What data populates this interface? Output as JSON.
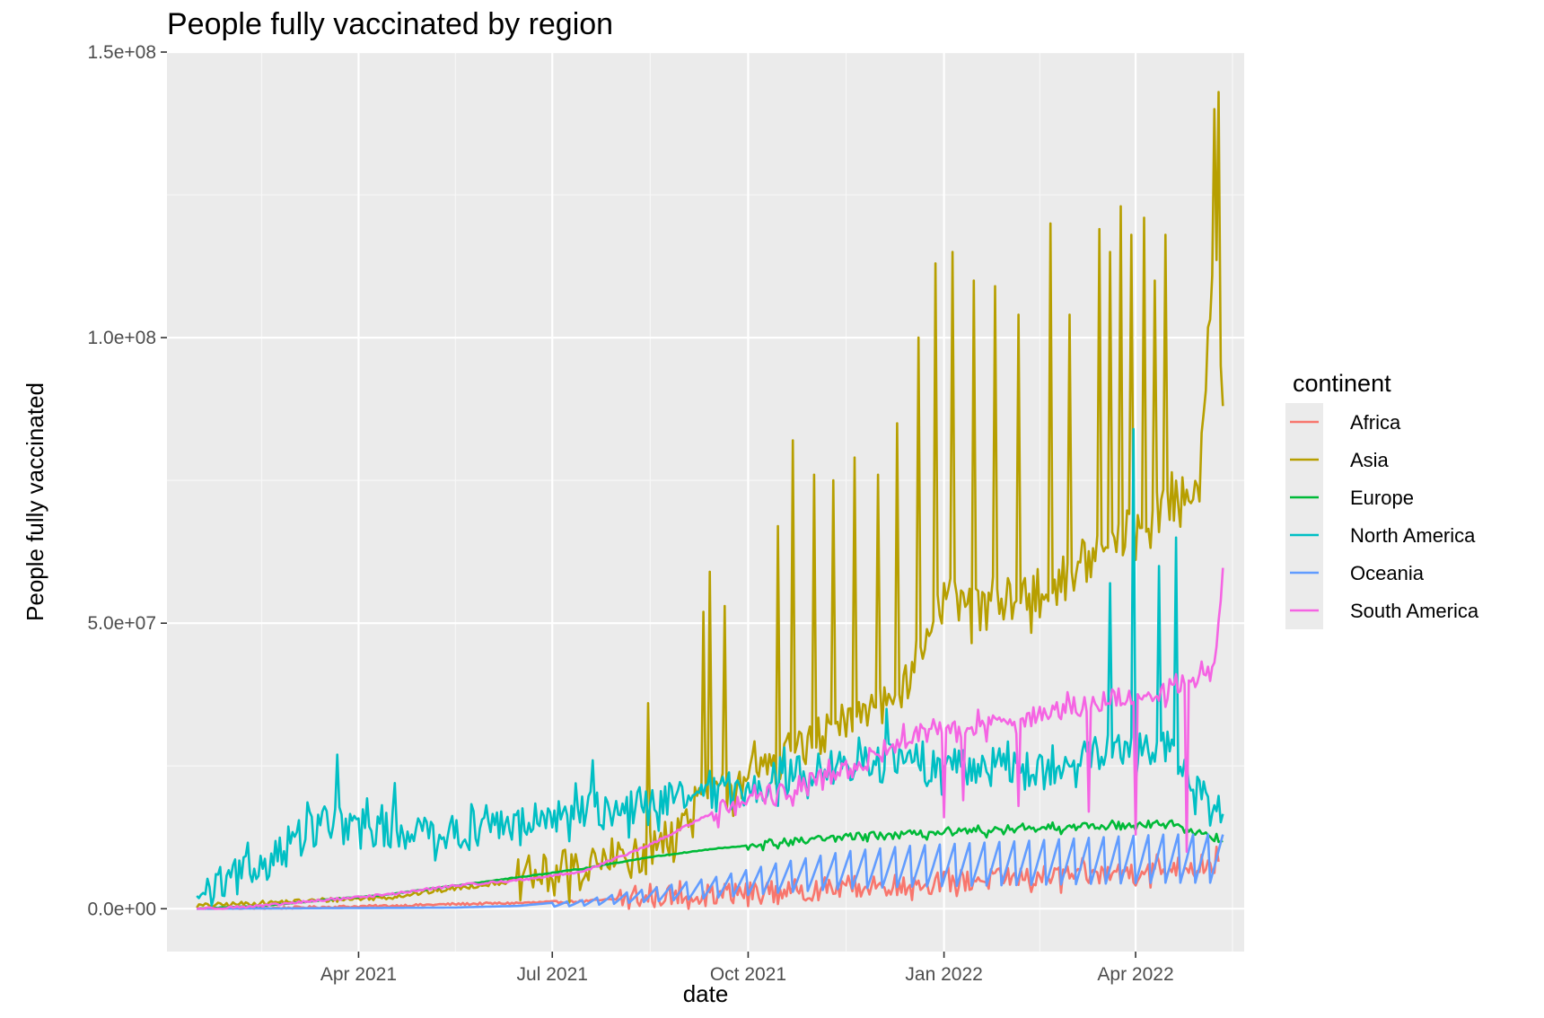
{
  "chart_data": {
    "type": "line",
    "title": "People fully vaccinated by region",
    "xlabel": "date",
    "ylabel": "People fully vaccinated",
    "x_ticks": [
      "Apr 2021",
      "Jul 2021",
      "Oct 2021",
      "Jan 2022",
      "Apr 2022"
    ],
    "y_ticks": [
      "0.0e+00",
      "5.0e+07",
      "1.0e+08",
      "1.5e+08"
    ],
    "xlim": [
      "2021-01-01",
      "2022-05-22"
    ],
    "ylim": [
      -7500000,
      150000000
    ],
    "grid": true,
    "legend_title": "continent",
    "legend_position": "right",
    "series": [
      {
        "name": "Africa",
        "color": "#F8766D",
        "points": [
          [
            "2021-01-15",
            0
          ],
          [
            "2021-02-15",
            100000
          ],
          [
            "2021-03-15",
            300000
          ],
          [
            "2021-04-15",
            500000
          ],
          [
            "2021-05-15",
            800000
          ],
          [
            "2021-06-15",
            1000000
          ],
          [
            "2021-07-15",
            1300000
          ],
          [
            "2021-08-15",
            2000000
          ],
          [
            "2021-09-15",
            2500000
          ],
          [
            "2021-10-15",
            3000000
          ],
          [
            "2021-11-15",
            3800000
          ],
          [
            "2021-12-15",
            4300000
          ],
          [
            "2022-01-15",
            5000000
          ],
          [
            "2022-02-15",
            5500000
          ],
          [
            "2022-03-15",
            6000000
          ],
          [
            "2022-04-15",
            7000000
          ],
          [
            "2022-05-10",
            8000000
          ]
        ],
        "noise": 2000000,
        "noise_start": "2021-08-01"
      },
      {
        "name": "Asia",
        "color": "#B79F00",
        "points": [
          [
            "2021-01-15",
            500000
          ],
          [
            "2021-02-15",
            1000000
          ],
          [
            "2021-03-15",
            1500000
          ],
          [
            "2021-04-15",
            2000000
          ],
          [
            "2021-05-15",
            3500000
          ],
          [
            "2021-06-15",
            5000000
          ],
          [
            "2021-07-15",
            7000000
          ],
          [
            "2021-08-15",
            10000000
          ],
          [
            "2021-09-01",
            15000000
          ],
          [
            "2021-09-15",
            20000000
          ],
          [
            "2021-10-15",
            26000000
          ],
          [
            "2021-11-15",
            32000000
          ],
          [
            "2021-12-15",
            40000000
          ],
          [
            "2022-01-01",
            55000000
          ],
          [
            "2022-01-15",
            52000000
          ],
          [
            "2022-02-15",
            55000000
          ],
          [
            "2022-03-15",
            62000000
          ],
          [
            "2022-04-15",
            70000000
          ],
          [
            "2022-05-01",
            75000000
          ],
          [
            "2022-05-08",
            120000000
          ],
          [
            "2022-05-12",
            90000000
          ]
        ],
        "noise": 4000000,
        "noise_start": "2021-06-15",
        "spikes": [
          [
            "2021-08-15",
            36000000
          ],
          [
            "2021-09-10",
            52000000
          ],
          [
            "2021-09-13",
            59000000
          ],
          [
            "2021-09-20",
            53000000
          ],
          [
            "2021-10-15",
            67000000
          ],
          [
            "2021-10-22",
            82000000
          ],
          [
            "2021-11-01",
            76000000
          ],
          [
            "2021-11-10",
            75000000
          ],
          [
            "2021-11-20",
            79000000
          ],
          [
            "2021-12-01",
            76000000
          ],
          [
            "2021-12-10",
            85000000
          ],
          [
            "2021-12-20",
            100000000
          ],
          [
            "2021-12-28",
            113000000
          ],
          [
            "2022-01-05",
            115000000
          ],
          [
            "2022-01-15",
            110000000
          ],
          [
            "2022-01-25",
            109000000
          ],
          [
            "2022-02-05",
            104000000
          ],
          [
            "2022-02-20",
            120000000
          ],
          [
            "2022-03-01",
            104000000
          ],
          [
            "2022-03-15",
            119000000
          ],
          [
            "2022-03-20",
            115000000
          ],
          [
            "2022-03-25",
            123000000
          ],
          [
            "2022-03-30",
            118000000
          ],
          [
            "2022-04-05",
            121000000
          ],
          [
            "2022-04-10",
            110000000
          ],
          [
            "2022-04-15",
            118000000
          ],
          [
            "2022-05-08",
            140000000
          ],
          [
            "2022-05-10",
            143000000
          ]
        ]
      },
      {
        "name": "Europe",
        "color": "#00BA38",
        "points": [
          [
            "2021-01-15",
            0
          ],
          [
            "2021-02-15",
            500000
          ],
          [
            "2021-03-15",
            1500000
          ],
          [
            "2021-04-15",
            2500000
          ],
          [
            "2021-05-15",
            4000000
          ],
          [
            "2021-06-15",
            5500000
          ],
          [
            "2021-07-15",
            7000000
          ],
          [
            "2021-08-15",
            9000000
          ],
          [
            "2021-09-15",
            10500000
          ],
          [
            "2021-10-15",
            11500000
          ],
          [
            "2021-11-15",
            12500000
          ],
          [
            "2021-12-15",
            13000000
          ],
          [
            "2022-01-15",
            13500000
          ],
          [
            "2022-02-15",
            14000000
          ],
          [
            "2022-03-15",
            14500000
          ],
          [
            "2022-04-15",
            15000000
          ],
          [
            "2022-05-12",
            12000000
          ]
        ],
        "noise": 700000,
        "noise_start": "2021-10-01"
      },
      {
        "name": "North America",
        "color": "#00BFC4",
        "points": [
          [
            "2021-01-15",
            2000000
          ],
          [
            "2021-02-01",
            5000000
          ],
          [
            "2021-02-15",
            8000000
          ],
          [
            "2021-03-01",
            12000000
          ],
          [
            "2021-03-15",
            15000000
          ],
          [
            "2021-04-15",
            14000000
          ],
          [
            "2021-05-15",
            13500000
          ],
          [
            "2021-06-15",
            14500000
          ],
          [
            "2021-07-15",
            17000000
          ],
          [
            "2021-08-15",
            18000000
          ],
          [
            "2021-09-15",
            20000000
          ],
          [
            "2021-10-15",
            23000000
          ],
          [
            "2021-11-15",
            25000000
          ],
          [
            "2021-12-15",
            26000000
          ],
          [
            "2022-01-15",
            25000000
          ],
          [
            "2022-02-15",
            24000000
          ],
          [
            "2022-03-15",
            27000000
          ],
          [
            "2022-04-15",
            28000000
          ],
          [
            "2022-05-12",
            16000000
          ]
        ],
        "noise": 3500000,
        "noise_start": "2021-01-20",
        "spikes": [
          [
            "2021-03-22",
            27000000
          ],
          [
            "2021-04-18",
            22000000
          ],
          [
            "2021-07-20",
            26000000
          ],
          [
            "2021-08-25",
            22000000
          ],
          [
            "2021-12-05",
            35000000
          ],
          [
            "2022-03-20",
            57000000
          ],
          [
            "2022-03-31",
            84000000
          ],
          [
            "2022-04-20",
            65000000
          ],
          [
            "2022-04-12",
            60000000
          ]
        ]
      },
      {
        "name": "Oceania",
        "color": "#619CFF",
        "points": [
          [
            "2021-01-15",
            0
          ],
          [
            "2021-03-15",
            100000
          ],
          [
            "2021-05-15",
            200000
          ],
          [
            "2021-06-15",
            500000
          ],
          [
            "2021-07-15",
            1500000
          ],
          [
            "2021-08-15",
            3500000
          ],
          [
            "2021-09-15",
            5500000
          ],
          [
            "2021-10-15",
            8000000
          ],
          [
            "2021-11-15",
            10000000
          ],
          [
            "2021-12-15",
            11000000
          ],
          [
            "2022-01-15",
            11500000
          ],
          [
            "2022-02-15",
            12000000
          ],
          [
            "2022-03-15",
            12500000
          ],
          [
            "2022-04-15",
            13000000
          ],
          [
            "2022-05-12",
            13000000
          ]
        ],
        "sawtooth": true,
        "noise_start": "2021-07-01"
      },
      {
        "name": "South America",
        "color": "#F564E3",
        "points": [
          [
            "2021-01-15",
            0
          ],
          [
            "2021-02-15",
            500000
          ],
          [
            "2021-03-15",
            1500000
          ],
          [
            "2021-04-15",
            2500000
          ],
          [
            "2021-05-15",
            4000000
          ],
          [
            "2021-06-15",
            5000000
          ],
          [
            "2021-07-15",
            6500000
          ],
          [
            "2021-08-15",
            11000000
          ],
          [
            "2021-09-15",
            17000000
          ],
          [
            "2021-10-15",
            20000000
          ],
          [
            "2021-11-15",
            24000000
          ],
          [
            "2021-12-15",
            30000000
          ],
          [
            "2022-01-15",
            32000000
          ],
          [
            "2022-02-15",
            34000000
          ],
          [
            "2022-03-15",
            36000000
          ],
          [
            "2022-04-15",
            38000000
          ],
          [
            "2022-05-08",
            43000000
          ],
          [
            "2022-05-12",
            58000000
          ]
        ],
        "noise": 2000000,
        "noise_start": "2021-09-15",
        "dips": [
          [
            "2022-01-01",
            16000000
          ],
          [
            "2022-01-10",
            19000000
          ],
          [
            "2022-02-05",
            18000000
          ],
          [
            "2022-03-10",
            17000000
          ],
          [
            "2022-04-01",
            13000000
          ],
          [
            "2022-04-25",
            10000000
          ]
        ]
      }
    ]
  }
}
